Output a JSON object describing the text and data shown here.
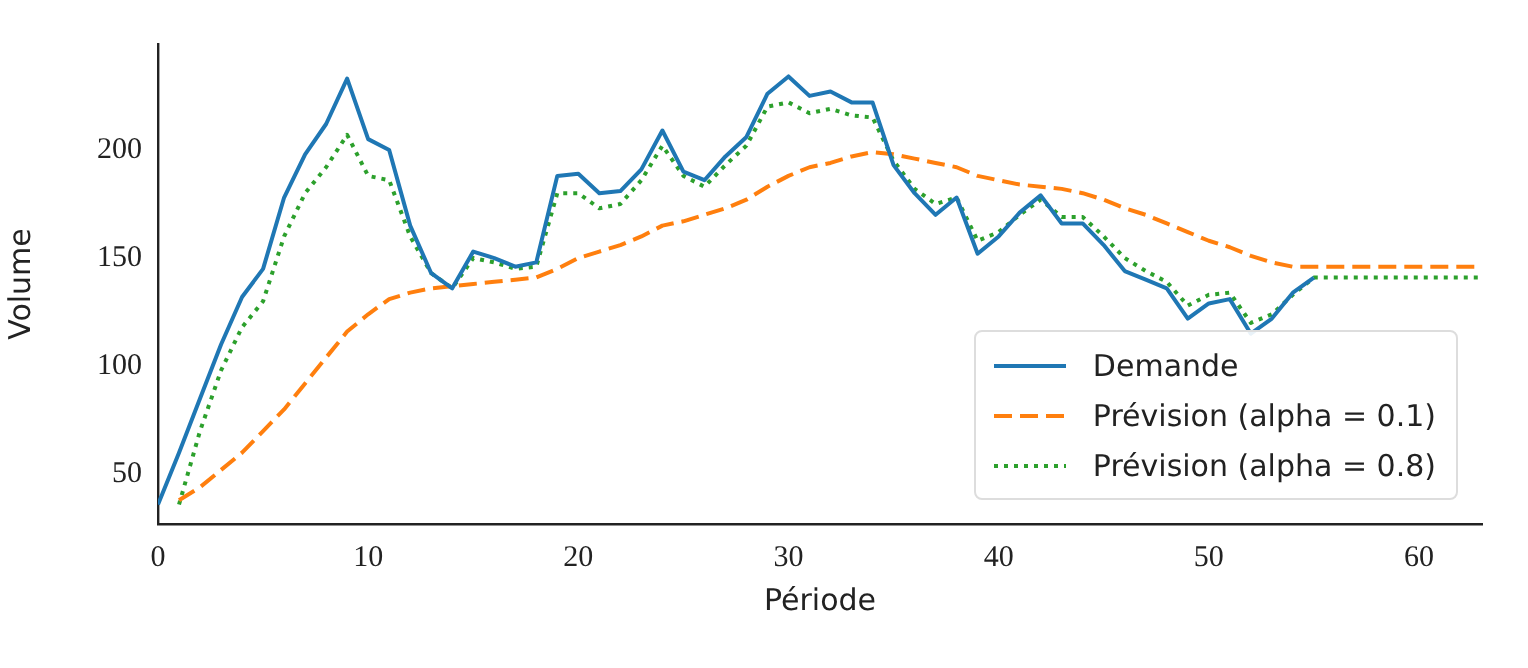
{
  "chart_data": {
    "type": "line",
    "xlabel": "Période",
    "ylabel": "Volume",
    "xlim": [
      0,
      63
    ],
    "xticks": [
      0,
      10,
      20,
      30,
      40,
      50,
      60
    ],
    "ylim": [
      27,
      249
    ],
    "yticks": [
      50,
      100,
      150,
      200
    ],
    "grid": false,
    "legend": "bottom right",
    "marker": "none",
    "series": [
      {
        "name": "Demande",
        "color": "#1f77b4",
        "line_style": "solid",
        "x": [
          0,
          1,
          2,
          3,
          4,
          5,
          6,
          7,
          8,
          9,
          10,
          11,
          12,
          13,
          14,
          15,
          16,
          17,
          18,
          19,
          20,
          21,
          22,
          23,
          24,
          25,
          26,
          27,
          28,
          29,
          30,
          31,
          32,
          33,
          34,
          35,
          36,
          37,
          38,
          39,
          40,
          41,
          42,
          43,
          44,
          45,
          46,
          47,
          48,
          49,
          50,
          51,
          52,
          53,
          54,
          55
        ],
        "values": [
          36,
          60,
          85,
          110,
          132,
          145,
          178,
          198,
          212,
          233,
          205,
          200,
          165,
          143,
          136,
          153,
          150,
          146,
          148,
          188,
          189,
          180,
          181,
          191,
          209,
          190,
          186,
          197,
          206,
          226,
          234,
          225,
          227,
          222,
          222,
          193,
          180,
          170,
          178,
          152,
          160,
          171,
          179,
          166,
          166,
          156,
          144,
          140,
          136,
          122,
          129,
          131,
          115,
          122,
          134,
          141
        ]
      },
      {
        "name": "Prévision (alpha = 0.1)",
        "color": "#ff7f0e",
        "line_style": "dashed",
        "x": [
          1,
          2,
          3,
          4,
          5,
          6,
          7,
          8,
          9,
          10,
          11,
          12,
          13,
          14,
          15,
          16,
          17,
          18,
          19,
          20,
          21,
          22,
          23,
          24,
          25,
          26,
          27,
          28,
          29,
          30,
          31,
          32,
          33,
          34,
          35,
          36,
          37,
          38,
          39,
          40,
          41,
          42,
          43,
          44,
          45,
          46,
          47,
          48,
          49,
          50,
          51,
          52,
          53,
          54,
          55,
          63
        ],
        "values": [
          38,
          44,
          52,
          60,
          70,
          80,
          92,
          104,
          116,
          124,
          131,
          134,
          136,
          137,
          138,
          139,
          140,
          141,
          145,
          150,
          153,
          156,
          160,
          165,
          167,
          170,
          173,
          177,
          183,
          188,
          192,
          194,
          197,
          199,
          198,
          196,
          194,
          192,
          188,
          186,
          184,
          183,
          182,
          180,
          177,
          173,
          170,
          166,
          162,
          158,
          155,
          151,
          148,
          146,
          146,
          146
        ]
      },
      {
        "name": "Prévision (alpha = 0.8)",
        "color": "#2ca02c",
        "line_style": "dotted",
        "x": [
          1,
          2,
          3,
          4,
          5,
          6,
          7,
          8,
          9,
          10,
          11,
          12,
          13,
          14,
          15,
          16,
          17,
          18,
          19,
          20,
          21,
          22,
          23,
          24,
          25,
          26,
          27,
          28,
          29,
          30,
          31,
          32,
          33,
          34,
          35,
          36,
          37,
          38,
          39,
          40,
          41,
          42,
          43,
          44,
          45,
          46,
          47,
          48,
          49,
          50,
          51,
          52,
          53,
          54,
          55,
          63
        ],
        "values": [
          36,
          70,
          98,
          118,
          130,
          160,
          180,
          192,
          207,
          188,
          186,
          160,
          143,
          136,
          150,
          148,
          145,
          146,
          180,
          180,
          173,
          175,
          186,
          202,
          188,
          183,
          193,
          202,
          220,
          222,
          217,
          219,
          216,
          215,
          195,
          182,
          175,
          178,
          158,
          162,
          170,
          177,
          169,
          169,
          160,
          150,
          144,
          139,
          128,
          133,
          134,
          120,
          124,
          133,
          141,
          141
        ]
      }
    ]
  }
}
